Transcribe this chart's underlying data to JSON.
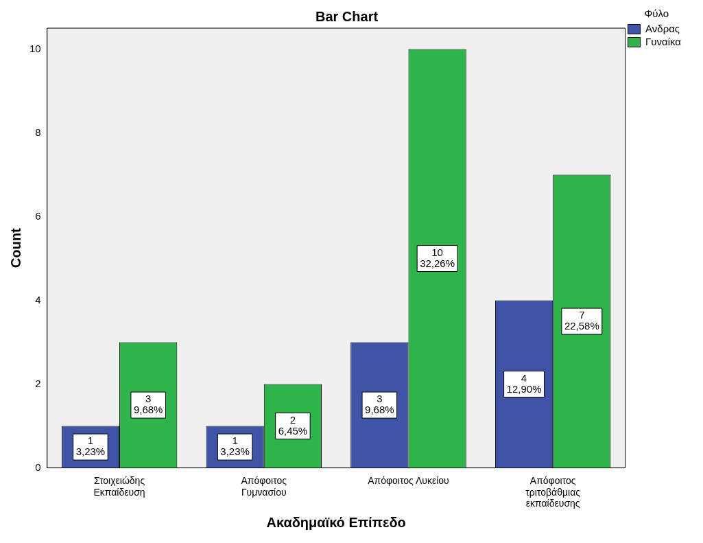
{
  "chart_data": {
    "type": "bar",
    "title": "Bar Chart",
    "xlabel": "Ακαδημαϊκό Επίπεδο",
    "ylabel": "Count",
    "legend_title": "Φύλο",
    "legend": "top right",
    "categories": [
      "Στοιχειώδης\nΕκπαίδευση",
      "Απόφοιτος\nΓυμνασίου",
      "Απόφοιτος Λυκείου",
      "Απόφοιτος\nτριτοβάθμιας\nεκπαίδευσης"
    ],
    "series": [
      {
        "name": "Ανδρας",
        "color": "#3f54a6",
        "values": [
          1,
          1,
          3,
          4
        ],
        "value_labels": [
          "1\n3,23%",
          "1\n3,23%",
          "3\n9,68%",
          "4\n12,90%"
        ]
      },
      {
        "name": "Γυναίκα",
        "color": "#2fb34b",
        "values": [
          3,
          2,
          10,
          7
        ],
        "value_labels": [
          "3\n9,68%",
          "2\n6,45%",
          "10\n32,26%",
          "7\n22,58%"
        ]
      }
    ],
    "ylim": [
      0,
      10.5
    ],
    "yticks": [
      0,
      2,
      4,
      6,
      8,
      10
    ],
    "grid": false
  }
}
